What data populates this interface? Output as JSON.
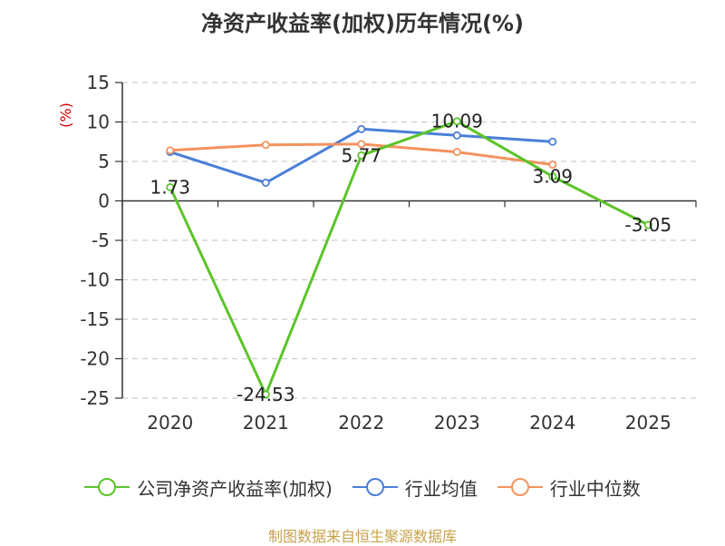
{
  "chart_data": {
    "type": "line",
    "title": "净资产收益率(加权)历年情况(%)",
    "ylabel": "(%)",
    "xlabel": "",
    "categories": [
      "2020",
      "2021",
      "2022",
      "2023",
      "2024",
      "2025"
    ],
    "ylim": [
      -25,
      15
    ],
    "yticks": [
      15,
      10,
      5,
      0,
      -5,
      -10,
      -15,
      -20,
      -25
    ],
    "grid": true,
    "legend_position": "bottom",
    "series": [
      {
        "name": "公司净资产收益率(加权)",
        "color": "#5cc42a",
        "values": [
          1.73,
          -24.53,
          5.77,
          10.09,
          3.09,
          -3.05
        ],
        "labels": [
          "1.73",
          "-24.53",
          "5.77",
          "10.09",
          "3.09",
          "-3.05"
        ]
      },
      {
        "name": "行业均值",
        "color": "#4a7fd8",
        "values": [
          6.2,
          2.3,
          9.1,
          8.3,
          7.5,
          null
        ]
      },
      {
        "name": "行业中位数",
        "color": "#f4935e",
        "values": [
          6.4,
          7.1,
          7.2,
          6.2,
          4.6,
          null
        ]
      }
    ]
  },
  "source": "制图数据来自恒生聚源数据库"
}
